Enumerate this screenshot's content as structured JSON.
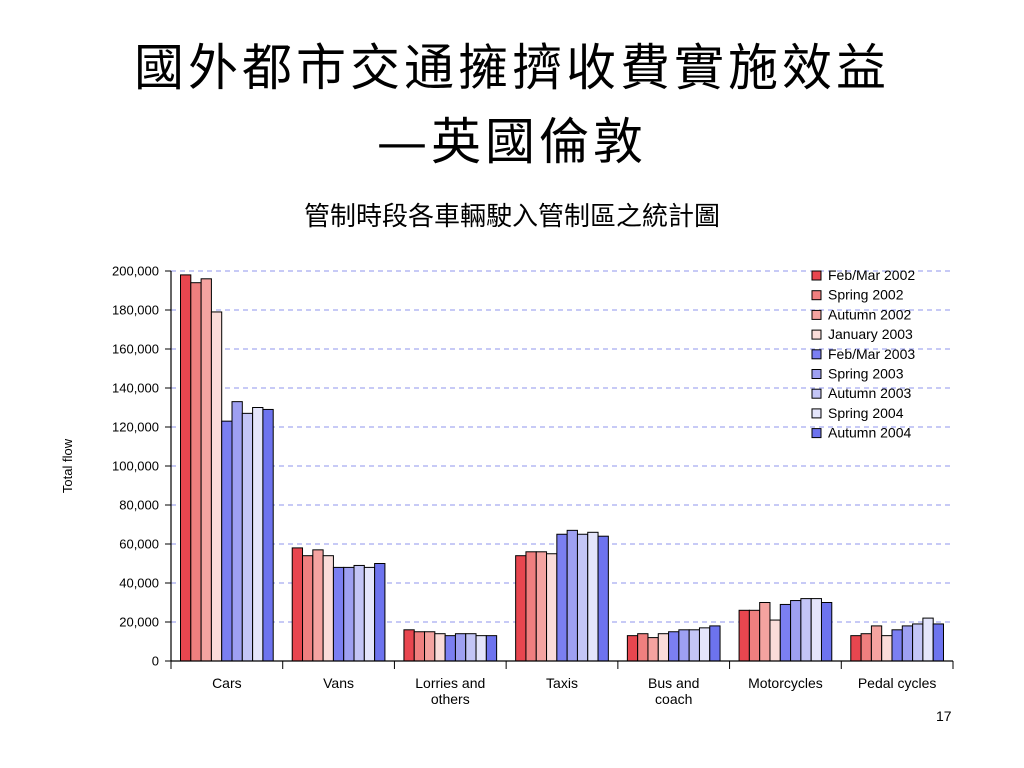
{
  "slide": {
    "title_line1": "國外都市交通擁擠收費實施效益",
    "title_line2": "—英國倫敦",
    "subtitle": "管制時段各車輛駛入管制區之統計圖",
    "page_number": "17"
  },
  "chart_data": {
    "type": "bar",
    "title": "",
    "xlabel": "",
    "ylabel": "Total flow",
    "ylim": [
      0,
      200000
    ],
    "ytick_step": 20000,
    "ytick_labels": [
      "0",
      "20,000",
      "40,000",
      "60,000",
      "80,000",
      "100,000",
      "120,000",
      "140,000",
      "160,000",
      "180,000",
      "200,000"
    ],
    "grid": true,
    "legend_position": "top-right",
    "categories": [
      "Cars",
      "Vans",
      "Lorries and others",
      "Taxis",
      "Bus and coach",
      "Motorcycles",
      "Pedal cycles"
    ],
    "category_labels": [
      [
        "Cars"
      ],
      [
        "Vans"
      ],
      [
        "Lorries and",
        "others"
      ],
      [
        "Taxis"
      ],
      [
        "Bus and",
        "coach"
      ],
      [
        "Motorcycles"
      ],
      [
        "Pedal cycles"
      ]
    ],
    "series": [
      {
        "name": "Feb/Mar 2002",
        "color": "#e8464f",
        "values": [
          198000,
          58000,
          16000,
          54000,
          13000,
          26000,
          13000
        ]
      },
      {
        "name": "Spring 2002",
        "color": "#ef7f7f",
        "values": [
          194000,
          54000,
          15000,
          56000,
          14000,
          26000,
          14000
        ]
      },
      {
        "name": "Autumn 2002",
        "color": "#f4a3a0",
        "values": [
          196000,
          57000,
          15000,
          56000,
          12000,
          30000,
          18000
        ]
      },
      {
        "name": "January 2003",
        "color": "#fadcd9",
        "values": [
          179000,
          54000,
          14000,
          55000,
          14000,
          21000,
          13000
        ]
      },
      {
        "name": "Feb/Mar 2003",
        "color": "#7b7ff2",
        "values": [
          123000,
          48000,
          13000,
          65000,
          15000,
          29000,
          16000
        ]
      },
      {
        "name": "Spring 2003",
        "color": "#9ea0f2",
        "values": [
          133000,
          48000,
          14000,
          67000,
          16000,
          31000,
          18000
        ]
      },
      {
        "name": "Autumn 2003",
        "color": "#c3c5f6",
        "values": [
          127000,
          49000,
          14000,
          65000,
          16000,
          32000,
          19000
        ]
      },
      {
        "name": "Spring 2004",
        "color": "#e4e5fb",
        "values": [
          130000,
          48000,
          13000,
          66000,
          17000,
          32000,
          22000
        ]
      },
      {
        "name": "Autumn 2004",
        "color": "#6d73ee",
        "values": [
          129000,
          50000,
          13000,
          64000,
          18000,
          30000,
          19000
        ]
      }
    ]
  }
}
